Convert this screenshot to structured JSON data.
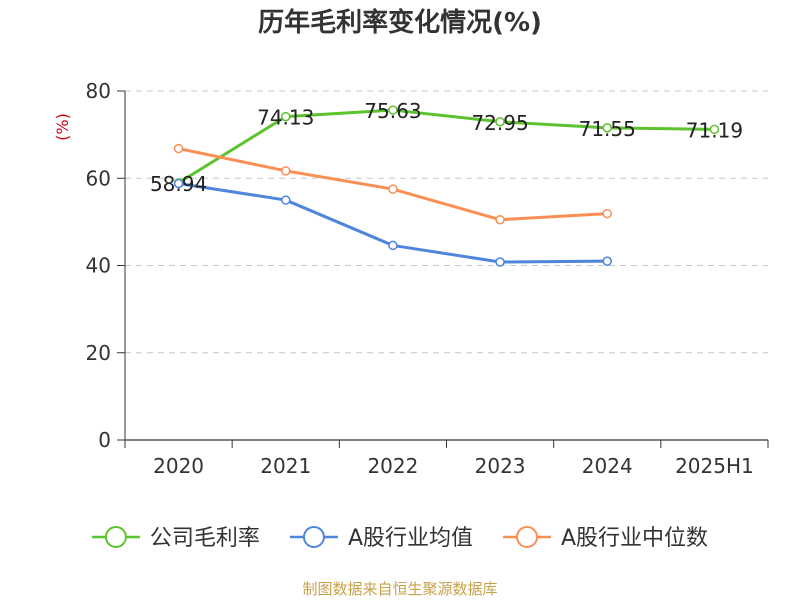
{
  "chart_data": {
    "type": "line",
    "title": "历年毛利率变化情况(%)",
    "ylabel": "(%)",
    "xlabel": "",
    "categories": [
      "2020",
      "2021",
      "2022",
      "2023",
      "2024",
      "2025H1"
    ],
    "ylim": [
      0,
      80
    ],
    "yticks": [
      0,
      20,
      40,
      60,
      80
    ],
    "grid": true,
    "legend_position": "bottom",
    "series": [
      {
        "name": "公司毛利率",
        "color": "#5cc22e",
        "values": [
          58.94,
          74.13,
          75.63,
          72.95,
          71.55,
          71.19
        ],
        "labels": [
          "58.94",
          "74.13",
          "75.63",
          "72.95",
          "71.55",
          "71.19"
        ]
      },
      {
        "name": "A股行业均值",
        "color": "#4f85dc",
        "values": [
          58.8,
          55.0,
          44.6,
          40.8,
          41.0,
          null
        ],
        "labels": null
      },
      {
        "name": "A股行业中位数",
        "color": "#fa8f55",
        "values": [
          66.8,
          61.7,
          57.5,
          50.5,
          51.9,
          null
        ],
        "labels": null
      }
    ],
    "source": "制图数据来自恒生聚源数据库"
  }
}
